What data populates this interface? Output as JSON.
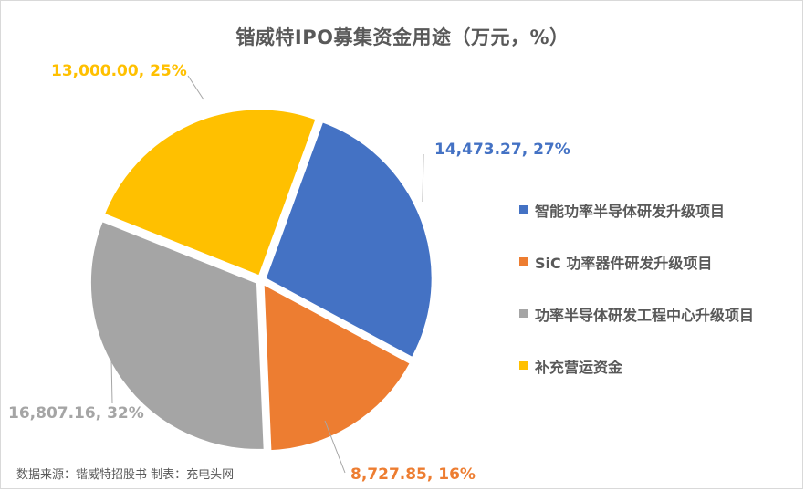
{
  "chart_data": {
    "type": "pie",
    "title": "锴威特IPO募集资金用途（万元，%）",
    "slices": [
      {
        "name": "智能功率半导体研发升级项目",
        "value": 14473.27,
        "percent": 27,
        "label": "14,473.27, 27%",
        "color": "#4472C4"
      },
      {
        "name": "SiC 功率器件研发升级项目",
        "value": 8727.85,
        "percent": 16,
        "label": "8,727.85, 16%",
        "color": "#ED7D31"
      },
      {
        "name": "功率半导体研发工程中心升级项目",
        "value": 16807.16,
        "percent": 32,
        "label": "16,807.16, 32%",
        "color": "#A5A5A5"
      },
      {
        "name": "补充营运资金",
        "value": 13000.0,
        "percent": 25,
        "label": "13,000.00, 25%",
        "color": "#FFC000"
      }
    ],
    "legend_position": "right",
    "start_angle_deg": 20,
    "exploded": true
  },
  "source_note": "数据来源：锴威特招股书 制表：充电头网"
}
